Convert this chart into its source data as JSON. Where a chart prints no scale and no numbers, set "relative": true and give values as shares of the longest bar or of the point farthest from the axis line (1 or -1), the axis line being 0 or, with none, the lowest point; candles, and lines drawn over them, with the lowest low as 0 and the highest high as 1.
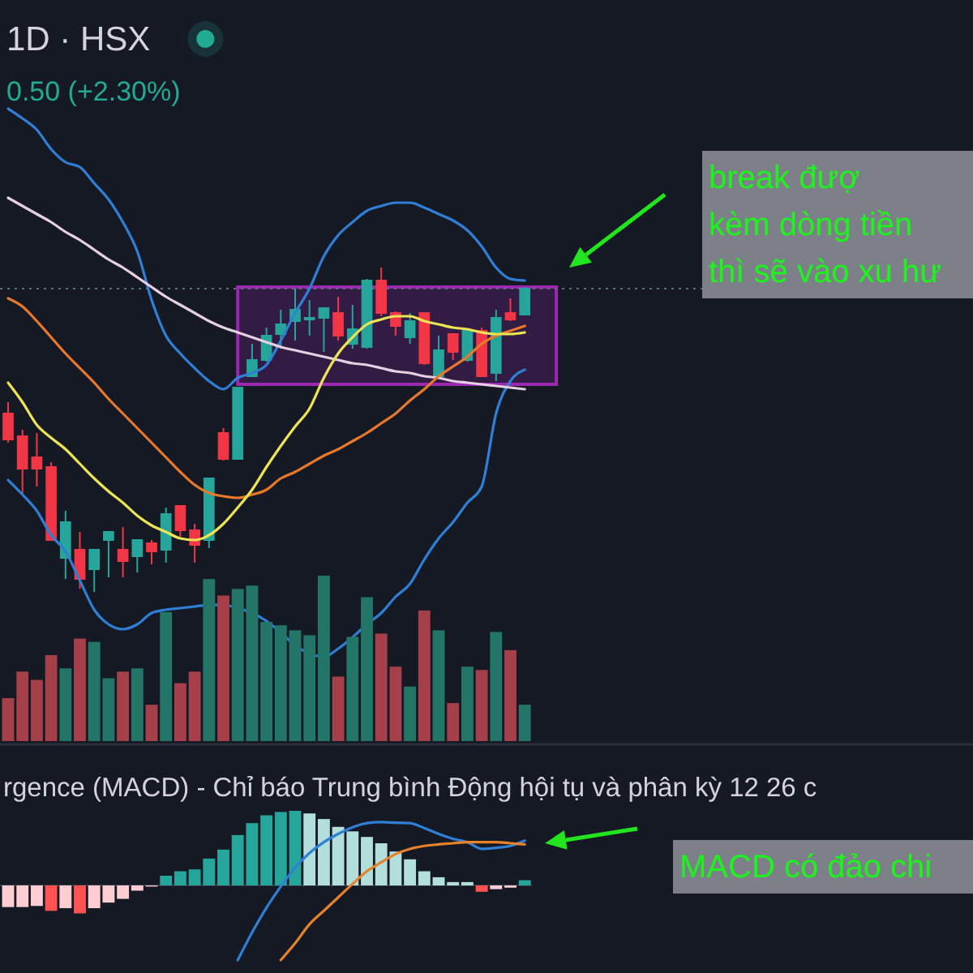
{
  "chart_data": [
    {
      "type": "candlestick",
      "title": "1D · HSX",
      "subtitle": "0.50 (+2.30%)",
      "relative": true,
      "categories": [
        null,
        null,
        null,
        null,
        null,
        null,
        null,
        null,
        null,
        null,
        null,
        null,
        null,
        null,
        null,
        null,
        null,
        null,
        null,
        null,
        null,
        null,
        null,
        null,
        null,
        null,
        null,
        null,
        null,
        null,
        null,
        null,
        null,
        null,
        null,
        null,
        null
      ],
      "ohlc": [
        [
          0.55,
          0.585,
          0.46,
          0.47
        ],
        [
          0.48,
          0.5,
          0.3,
          0.38
        ],
        [
          0.415,
          0.49,
          0.325,
          0.38
        ],
        [
          0.385,
          0.4,
          0.16,
          0.16
        ],
        [
          0.105,
          0.25,
          0.04,
          0.215
        ],
        [
          0.13,
          0.185,
          0.01,
          0.04
        ],
        [
          0.07,
          0.13,
          0,
          0.13
        ],
        [
          0.16,
          0.185,
          0.045,
          0.185
        ],
        [
          0.13,
          0.2,
          0.045,
          0.095
        ],
        [
          0.11,
          0.16,
          0.06,
          0.16
        ],
        [
          0.15,
          0.16,
          0.085,
          0.125
        ],
        [
          0.13,
          0.26,
          0.09,
          0.24
        ],
        [
          0.265,
          0.265,
          0.17,
          0.19
        ],
        [
          0.19,
          0.21,
          0.09,
          0.145
        ],
        [
          0.16,
          0.35,
          0.135,
          0.35
        ],
        [
          0.49,
          0.505,
          0.405,
          0.41
        ],
        [
          0.41,
          0.63,
          0.41,
          0.63
        ],
        [
          0.665,
          0.765,
          0.665,
          0.715
        ],
        [
          0.715,
          0.815,
          0.71,
          0.79
        ],
        [
          0.795,
          0.87,
          0.75,
          0.825
        ],
        [
          0.835,
          0.935,
          0.775,
          0.87
        ],
        [
          0.84,
          0.9,
          0.79,
          0.845
        ],
        [
          0.845,
          0.875,
          0.74,
          0.875
        ],
        [
          0.86,
          0.91,
          0.775,
          0.79
        ],
        [
          0.765,
          0.885,
          0.75,
          0.81
        ],
        [
          0.755,
          0.965,
          0.75,
          0.96
        ],
        [
          0.96,
          1,
          0.85,
          0.86
        ],
        [
          0.86,
          0.865,
          0.79,
          0.82
        ],
        [
          0.785,
          0.86,
          0.765,
          0.835
        ],
        [
          0.86,
          0.86,
          0.7,
          0.705
        ],
        [
          0.665,
          0.79,
          0.66,
          0.745
        ],
        [
          0.795,
          0.795,
          0.715,
          0.74
        ],
        [
          0.715,
          0.805,
          0.71,
          0.805
        ],
        [
          0.805,
          0.815,
          0.665,
          0.665
        ],
        [
          0.675,
          0.87,
          0.65,
          0.845
        ],
        [
          0.86,
          0.905,
          0.835,
          0.84
        ],
        [
          0.855,
          0.94,
          0.855,
          0.935
        ]
      ],
      "colors": [
        "#f23645",
        "#f23645",
        "#f23645",
        "#f23645",
        "#26a69a",
        "#f23645",
        "#26a69a",
        "#26a69a",
        "#f23645",
        "#26a69a",
        "#f23645",
        "#26a69a",
        "#f23645",
        "#f23645",
        "#26a69a",
        "#f23645",
        "#26a69a",
        "#26a69a",
        "#26a69a",
        "#26a69a",
        "#26a69a",
        "#26a69a",
        "#26a69a",
        "#f23645",
        "#26a69a",
        "#26a69a",
        "#f23645",
        "#f23645",
        "#26a69a",
        "#f23645",
        "#26a69a",
        "#f23645",
        "#26a69a",
        "#f23645",
        "#26a69a",
        "#f23645",
        "#26a69a"
      ],
      "series": [
        {
          "type": "line",
          "color": "#2f7fd6",
          "values": [
            1.49,
            1.46,
            1.425,
            1.365,
            1.325,
            1.31,
            1.26,
            1.21,
            1.14,
            1.05,
            0.9,
            0.79,
            0.735,
            0.69,
            0.65,
            0.625,
            0.66,
            0.675,
            0.7,
            0.775,
            0.86,
            0.935,
            1.035,
            1.1,
            1.14,
            1.175,
            1.19,
            1.2,
            1.2,
            1.185,
            1.165,
            1.145,
            1.115,
            1.065,
            1.0,
            0.965,
            0.96
          ]
        },
        {
          "type": "line",
          "color": "#2f7fd6",
          "values": [
            0.345,
            0.3,
            0.25,
            0.175,
            0.125,
            0.035,
            -0.055,
            -0.1,
            -0.115,
            -0.1,
            -0.065,
            -0.055,
            -0.05,
            -0.045,
            -0.04,
            -0.04,
            -0.05,
            -0.065,
            -0.09,
            -0.125,
            -0.165,
            -0.19,
            -0.2,
            -0.175,
            -0.14,
            -0.1,
            -0.065,
            -0.015,
            0.025,
            0.1,
            0.165,
            0.215,
            0.275,
            0.325,
            0.55,
            0.65,
            0.685
          ]
        },
        {
          "type": "line",
          "color": "#e6cfe3",
          "values": [
            1.215,
            1.19,
            1.165,
            1.14,
            1.11,
            1.085,
            1.055,
            1.025,
            1.0,
            0.97,
            0.94,
            0.91,
            0.885,
            0.86,
            0.835,
            0.815,
            0.8,
            0.785,
            0.77,
            0.755,
            0.745,
            0.735,
            0.725,
            0.715,
            0.705,
            0.7,
            0.69,
            0.68,
            0.675,
            0.665,
            0.66,
            0.65,
            0.645,
            0.64,
            0.635,
            0.63,
            0.625
          ]
        },
        {
          "type": "line",
          "color": "#e8782a",
          "values": [
            0.905,
            0.88,
            0.835,
            0.785,
            0.735,
            0.69,
            0.645,
            0.595,
            0.55,
            0.505,
            0.46,
            0.415,
            0.37,
            0.33,
            0.305,
            0.295,
            0.29,
            0.3,
            0.315,
            0.35,
            0.37,
            0.395,
            0.42,
            0.44,
            0.465,
            0.49,
            0.52,
            0.55,
            0.59,
            0.625,
            0.665,
            0.695,
            0.725,
            0.765,
            0.79,
            0.805,
            0.82
          ]
        },
        {
          "type": "line",
          "color": "#ece454",
          "values": [
            0.645,
            0.585,
            0.515,
            0.475,
            0.44,
            0.395,
            0.35,
            0.31,
            0.275,
            0.235,
            0.205,
            0.185,
            0.165,
            0.16,
            0.175,
            0.21,
            0.26,
            0.315,
            0.385,
            0.45,
            0.51,
            0.565,
            0.66,
            0.735,
            0.785,
            0.825,
            0.84,
            0.85,
            0.85,
            0.835,
            0.825,
            0.815,
            0.81,
            0.8,
            0.795,
            0.795,
            0.8
          ]
        }
      ],
      "ref_lines": [
        {
          "axis": "y",
          "value": 0.935,
          "color": "#5f6e7c",
          "line_style": "dotted"
        }
      ],
      "bands": [
        {
          "axis": "y",
          "from": 0.64,
          "to": 0.94,
          "color": "#9c27b0"
        }
      ],
      "annotations": [
        "break đượ\nkèm dòng tiền\nthì sẽ vào xu hư"
      ]
    },
    {
      "type": "bar",
      "relative": true,
      "categories": [
        null,
        null,
        null,
        null,
        null,
        null,
        null,
        null,
        null,
        null,
        null,
        null,
        null,
        null,
        null,
        null,
        null,
        null,
        null,
        null,
        null,
        null,
        null,
        null,
        null,
        null,
        null,
        null,
        null,
        null,
        null,
        null,
        null,
        null,
        null,
        null,
        null
      ],
      "values": [
        0.26,
        0.42,
        0.37,
        0.52,
        0.44,
        0.62,
        0.6,
        0.38,
        0.42,
        0.44,
        0.22,
        0.78,
        0.35,
        0.42,
        0.98,
        0.88,
        0.92,
        0.94,
        0.72,
        0.7,
        0.67,
        0.64,
        1,
        0.39,
        0.63,
        0.87,
        0.65,
        0.45,
        0.33,
        0.79,
        0.67,
        0.23,
        0.45,
        0.43,
        0.66,
        0.55,
        0.22
      ],
      "colors": [
        "#a53f49",
        "#a53f49",
        "#a53f49",
        "#a53f49",
        "#227567",
        "#a53f49",
        "#227567",
        "#227567",
        "#a53f49",
        "#227567",
        "#a53f49",
        "#227567",
        "#a53f49",
        "#a53f49",
        "#227567",
        "#a53f49",
        "#227567",
        "#227567",
        "#227567",
        "#227567",
        "#227567",
        "#227567",
        "#227567",
        "#a53f49",
        "#227567",
        "#227567",
        "#a53f49",
        "#a53f49",
        "#227567",
        "#a53f49",
        "#227567",
        "#a53f49",
        "#227567",
        "#a53f49",
        "#227567",
        "#a53f49",
        "#227567"
      ]
    },
    {
      "type": "bar",
      "title": "rgence (MACD) - Chỉ báo Trung bình Động hội tụ và phân kỳ 12 26 c",
      "relative": true,
      "categories": [
        null,
        null,
        null,
        null,
        null,
        null,
        null,
        null,
        null,
        null,
        null,
        null,
        null,
        null,
        null,
        null,
        null,
        null,
        null,
        null,
        null,
        null,
        null,
        null,
        null,
        null,
        null,
        null,
        null,
        null,
        null,
        null,
        null,
        null,
        null,
        null,
        null
      ],
      "values": [
        -0.29,
        -0.29,
        -0.275,
        -0.34,
        -0.305,
        -0.375,
        -0.305,
        -0.23,
        -0.18,
        -0.07,
        -0.015,
        0.13,
        0.19,
        0.215,
        0.36,
        0.48,
        0.675,
        0.835,
        0.94,
        0.985,
        1,
        0.965,
        0.89,
        0.785,
        0.725,
        0.65,
        0.565,
        0.455,
        0.35,
        0.19,
        0.11,
        0.045,
        0.045,
        -0.085,
        -0.05,
        -0.03,
        0.07
      ],
      "colors": [
        "#ffcdd2",
        "#ffcdd2",
        "#ffcdd2",
        "#ff5252",
        "#ffcdd2",
        "#ff5252",
        "#ffcdd2",
        "#ffcdd2",
        "#ffcdd2",
        "#ffcdd2",
        "#ffcdd2",
        "#26a69a",
        "#26a69a",
        "#26a69a",
        "#26a69a",
        "#26a69a",
        "#26a69a",
        "#26a69a",
        "#26a69a",
        "#26a69a",
        "#26a69a",
        "#b2dfdb",
        "#b2dfdb",
        "#b2dfdb",
        "#b2dfdb",
        "#b2dfdb",
        "#b2dfdb",
        "#b2dfdb",
        "#b2dfdb",
        "#b2dfdb",
        "#b2dfdb",
        "#b2dfdb",
        "#b2dfdb",
        "#ff5252",
        "#ffcdd2",
        "#ffcdd2",
        "#26a69a"
      ],
      "series": [
        {
          "type": "line",
          "color": "#2f7fd6",
          "values": [
            null,
            null,
            null,
            null,
            null,
            null,
            null,
            null,
            null,
            null,
            null,
            null,
            null,
            null,
            null,
            null,
            -1,
            -0.63,
            -0.3,
            -0.015,
            0.24,
            0.435,
            0.58,
            0.69,
            0.78,
            0.835,
            0.85,
            0.84,
            0.835,
            0.77,
            0.69,
            0.625,
            0.58,
            0.49,
            0.505,
            0.53,
            0.6
          ]
        },
        {
          "type": "line",
          "color": "#e8822a",
          "values": [
            null,
            null,
            null,
            null,
            null,
            null,
            null,
            null,
            null,
            null,
            null,
            null,
            null,
            null,
            null,
            null,
            null,
            null,
            null,
            -1,
            -0.775,
            -0.52,
            -0.34,
            -0.16,
            0.02,
            0.19,
            0.31,
            0.42,
            0.49,
            0.53,
            0.55,
            0.565,
            0.58,
            0.58,
            0.58,
            0.565,
            0.55
          ]
        }
      ],
      "annotations": [
        "MACD có đảo chi"
      ]
    }
  ]
}
